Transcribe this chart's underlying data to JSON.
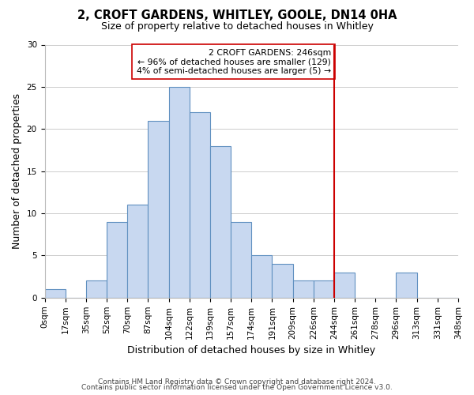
{
  "title": "2, CROFT GARDENS, WHITLEY, GOOLE, DN14 0HA",
  "subtitle": "Size of property relative to detached houses in Whitley",
  "xlabel": "Distribution of detached houses by size in Whitley",
  "ylabel": "Number of detached properties",
  "bin_labels": [
    "0sqm",
    "17sqm",
    "35sqm",
    "52sqm",
    "70sqm",
    "87sqm",
    "104sqm",
    "122sqm",
    "139sqm",
    "157sqm",
    "174sqm",
    "191sqm",
    "209sqm",
    "226sqm",
    "244sqm",
    "261sqm",
    "278sqm",
    "296sqm",
    "313sqm",
    "331sqm",
    "348sqm"
  ],
  "bar_values": [
    1,
    0,
    2,
    9,
    11,
    21,
    25,
    22,
    18,
    9,
    5,
    4,
    2,
    2,
    3,
    0,
    0,
    3,
    0,
    0
  ],
  "bar_color": "#c8d8f0",
  "bar_edge_color": "#6090c0",
  "property_line_color": "#cc0000",
  "property_line_index": 14,
  "annotation_text": "2 CROFT GARDENS: 246sqm\n← 96% of detached houses are smaller (129)\n4% of semi-detached houses are larger (5) →",
  "annotation_box_color": "#ffffff",
  "annotation_box_edge_color": "#cc0000",
  "footer_line1": "Contains HM Land Registry data © Crown copyright and database right 2024.",
  "footer_line2": "Contains public sector information licensed under the Open Government Licence v3.0.",
  "ylim": [
    0,
    30
  ],
  "yticks": [
    0,
    5,
    10,
    15,
    20,
    25,
    30
  ],
  "background_color": "#ffffff",
  "grid_color": "#cccccc",
  "title_fontsize": 10.5,
  "subtitle_fontsize": 9,
  "axis_label_fontsize": 9,
  "tick_fontsize": 7.5,
  "footer_fontsize": 6.5
}
